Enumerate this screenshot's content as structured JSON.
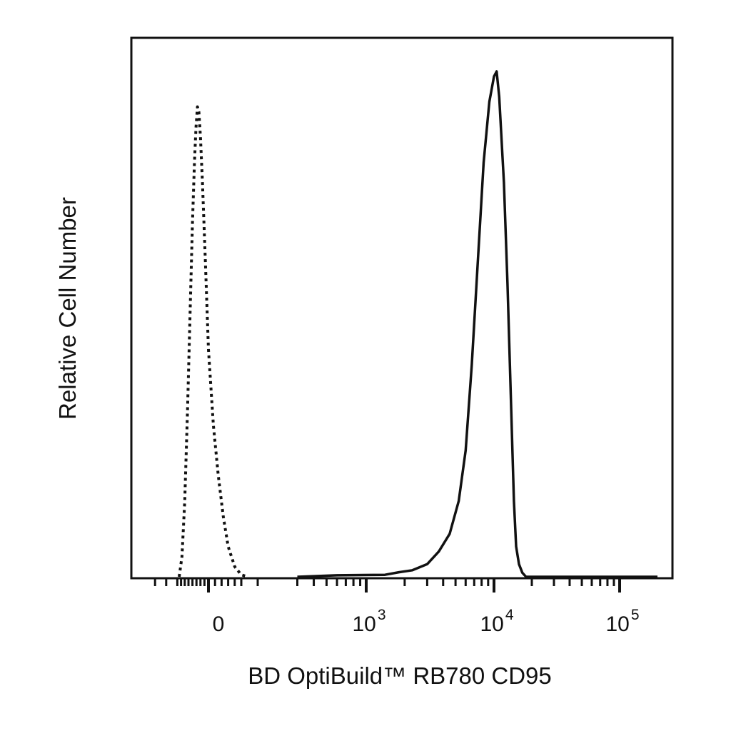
{
  "chart_data": {
    "type": "line",
    "title": "",
    "xlabel": "BD OptiBuild™ RB780 CD95",
    "ylabel": "Relative Cell Number",
    "x_scale": "biexponential",
    "xlim": [
      -300,
      200000
    ],
    "ylim": [
      0,
      100
    ],
    "grid": false,
    "legend": "none",
    "x_ticks": [
      {
        "value": 0,
        "base": "0",
        "exp": ""
      },
      {
        "value": 1000,
        "base": "10",
        "exp": "3"
      },
      {
        "value": 10000,
        "base": "10",
        "exp": "4"
      },
      {
        "value": 100000,
        "base": "10",
        "exp": "5"
      }
    ],
    "series": [
      {
        "style": "dotted",
        "color": "#111111",
        "points": [
          [
            -150,
            0
          ],
          [
            -135,
            4
          ],
          [
            -120,
            15
          ],
          [
            -105,
            33
          ],
          [
            -90,
            55
          ],
          [
            -80,
            70
          ],
          [
            -70,
            82
          ],
          [
            -62,
            89
          ],
          [
            -55,
            93
          ],
          [
            -48,
            92
          ],
          [
            -40,
            87
          ],
          [
            -30,
            78
          ],
          [
            -15,
            62
          ],
          [
            0,
            45
          ],
          [
            15,
            30
          ],
          [
            30,
            20
          ],
          [
            45,
            12
          ],
          [
            60,
            6
          ],
          [
            80,
            2
          ],
          [
            100,
            0.4
          ],
          [
            120,
            0
          ]
        ]
      },
      {
        "style": "solid",
        "color": "#111111",
        "points": [
          [
            300,
            0
          ],
          [
            600,
            0.3
          ],
          [
            1400,
            0.4
          ],
          [
            1800,
            0.9
          ],
          [
            2300,
            1.3
          ],
          [
            3000,
            2.5
          ],
          [
            3700,
            5
          ],
          [
            4500,
            8.5
          ],
          [
            5300,
            15
          ],
          [
            6000,
            25
          ],
          [
            6700,
            42
          ],
          [
            7500,
            63
          ],
          [
            8300,
            82
          ],
          [
            9200,
            94
          ],
          [
            10000,
            99
          ],
          [
            10500,
            100
          ],
          [
            11000,
            95
          ],
          [
            12000,
            78
          ],
          [
            12800,
            58
          ],
          [
            13600,
            36
          ],
          [
            14400,
            15
          ],
          [
            15000,
            6
          ],
          [
            15800,
            2.5
          ],
          [
            16800,
            0.8
          ],
          [
            18000,
            0
          ],
          [
            200000,
            0
          ]
        ]
      }
    ]
  }
}
